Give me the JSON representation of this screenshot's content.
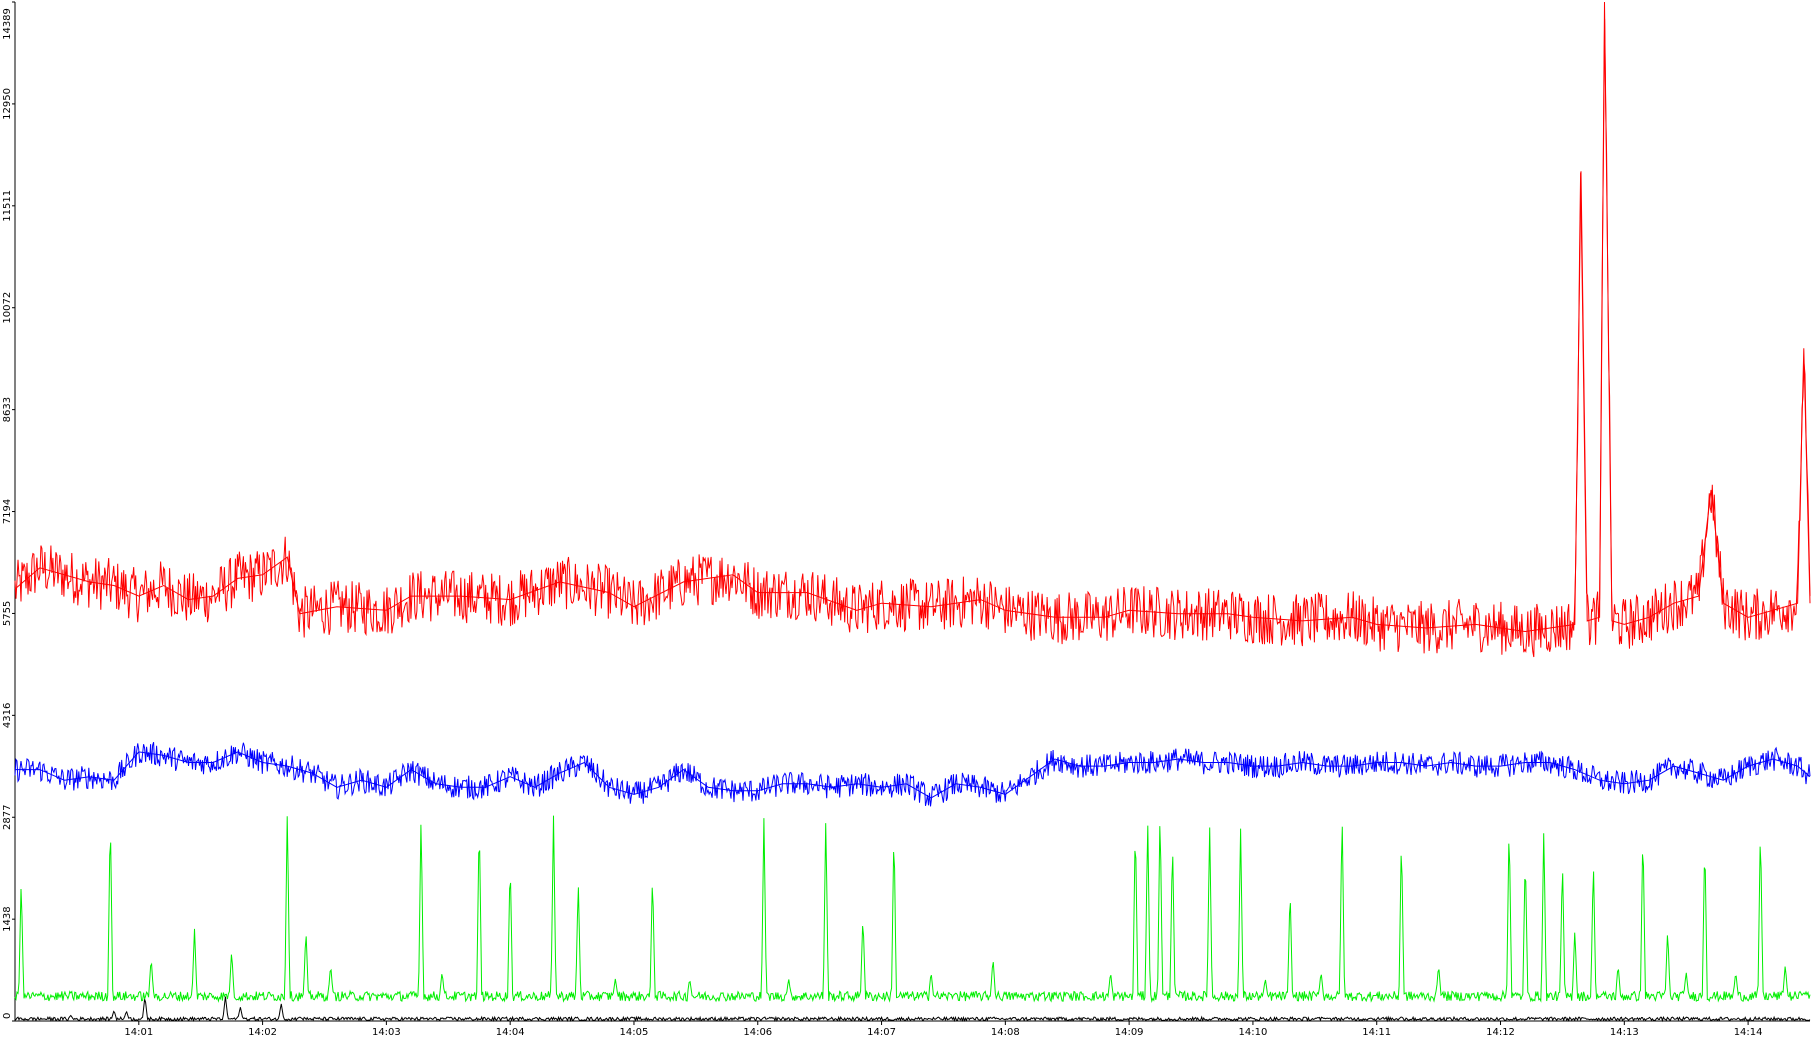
{
  "chart_data": {
    "type": "line",
    "title": "",
    "xlabel": "",
    "ylabel": "",
    "ylim": [
      0,
      14389
    ],
    "y_ticks": [
      "0",
      "1438",
      "2877",
      "4316",
      "5755",
      "7194",
      "8633",
      "10072",
      "11511",
      "12950",
      "14389"
    ],
    "x_range_minutes": [
      0.0,
      14.5
    ],
    "x_ticks": [
      {
        "label": "14:01",
        "t": 1
      },
      {
        "label": "14:02",
        "t": 2
      },
      {
        "label": "14:03",
        "t": 3
      },
      {
        "label": "14:04",
        "t": 4
      },
      {
        "label": "14:05",
        "t": 5
      },
      {
        "label": "14:06",
        "t": 6
      },
      {
        "label": "14:07",
        "t": 7
      },
      {
        "label": "14:08",
        "t": 8
      },
      {
        "label": "14:09",
        "t": 9
      },
      {
        "label": "14:10",
        "t": 10
      },
      {
        "label": "14:11",
        "t": 11
      },
      {
        "label": "14:12",
        "t": 12
      },
      {
        "label": "14:13",
        "t": 13
      },
      {
        "label": "14:14",
        "t": 14
      }
    ],
    "grid": false,
    "legend": "none",
    "series": [
      {
        "color": "#ff0000",
        "points": [
          [
            0.0,
            6100
          ],
          [
            0.2,
            6400
          ],
          [
            0.4,
            6300
          ],
          [
            0.6,
            6200
          ],
          [
            0.8,
            6150
          ],
          [
            1.0,
            6000
          ],
          [
            1.2,
            6150
          ],
          [
            1.4,
            5950
          ],
          [
            1.6,
            6000
          ],
          [
            1.8,
            6250
          ],
          [
            2.0,
            6300
          ],
          [
            2.2,
            6550
          ],
          [
            2.3,
            5750
          ],
          [
            2.6,
            5850
          ],
          [
            3.0,
            5800
          ],
          [
            3.2,
            6000
          ],
          [
            3.6,
            6000
          ],
          [
            4.0,
            5950
          ],
          [
            4.4,
            6200
          ],
          [
            4.8,
            6050
          ],
          [
            5.0,
            5850
          ],
          [
            5.4,
            6200
          ],
          [
            5.8,
            6300
          ],
          [
            6.0,
            6050
          ],
          [
            6.4,
            6050
          ],
          [
            6.8,
            5800
          ],
          [
            7.0,
            5900
          ],
          [
            7.4,
            5850
          ],
          [
            7.8,
            5950
          ],
          [
            8.0,
            5800
          ],
          [
            8.4,
            5700
          ],
          [
            8.8,
            5700
          ],
          [
            9.0,
            5800
          ],
          [
            9.4,
            5750
          ],
          [
            9.8,
            5750
          ],
          [
            10.0,
            5700
          ],
          [
            10.4,
            5650
          ],
          [
            10.8,
            5700
          ],
          [
            11.0,
            5600
          ],
          [
            11.4,
            5550
          ],
          [
            11.8,
            5600
          ],
          [
            12.0,
            5550
          ],
          [
            12.2,
            5500
          ],
          [
            12.4,
            5550
          ],
          [
            12.6,
            5600
          ],
          [
            12.65,
            12000
          ],
          [
            12.7,
            5650
          ],
          [
            12.8,
            5700
          ],
          [
            12.84,
            14389
          ],
          [
            12.9,
            5650
          ],
          [
            13.0,
            5600
          ],
          [
            13.2,
            5700
          ],
          [
            13.4,
            5900
          ],
          [
            13.6,
            6000
          ],
          [
            13.7,
            7500
          ],
          [
            13.8,
            5900
          ],
          [
            14.0,
            5700
          ],
          [
            14.2,
            5800
          ],
          [
            14.4,
            5900
          ],
          [
            14.45,
            9500
          ],
          [
            14.5,
            5900
          ]
        ]
      },
      {
        "color": "#0000ff",
        "points": [
          [
            0.0,
            3550
          ],
          [
            0.2,
            3550
          ],
          [
            0.4,
            3400
          ],
          [
            0.6,
            3450
          ],
          [
            0.8,
            3400
          ],
          [
            1.0,
            3800
          ],
          [
            1.2,
            3750
          ],
          [
            1.4,
            3650
          ],
          [
            1.6,
            3650
          ],
          [
            1.8,
            3800
          ],
          [
            2.0,
            3650
          ],
          [
            2.2,
            3600
          ],
          [
            2.4,
            3500
          ],
          [
            2.6,
            3300
          ],
          [
            2.8,
            3400
          ],
          [
            3.0,
            3300
          ],
          [
            3.2,
            3550
          ],
          [
            3.4,
            3350
          ],
          [
            3.6,
            3300
          ],
          [
            3.8,
            3300
          ],
          [
            4.0,
            3450
          ],
          [
            4.2,
            3300
          ],
          [
            4.4,
            3500
          ],
          [
            4.6,
            3650
          ],
          [
            4.8,
            3300
          ],
          [
            5.0,
            3200
          ],
          [
            5.2,
            3300
          ],
          [
            5.4,
            3550
          ],
          [
            5.6,
            3300
          ],
          [
            5.8,
            3250
          ],
          [
            6.0,
            3250
          ],
          [
            6.2,
            3350
          ],
          [
            6.4,
            3350
          ],
          [
            6.6,
            3300
          ],
          [
            6.8,
            3350
          ],
          [
            7.0,
            3300
          ],
          [
            7.2,
            3350
          ],
          [
            7.4,
            3150
          ],
          [
            7.6,
            3350
          ],
          [
            7.8,
            3300
          ],
          [
            8.0,
            3200
          ],
          [
            8.2,
            3450
          ],
          [
            8.4,
            3700
          ],
          [
            8.6,
            3600
          ],
          [
            8.8,
            3600
          ],
          [
            9.0,
            3650
          ],
          [
            9.2,
            3650
          ],
          [
            9.4,
            3700
          ],
          [
            9.6,
            3650
          ],
          [
            9.8,
            3650
          ],
          [
            10.0,
            3600
          ],
          [
            10.2,
            3600
          ],
          [
            10.4,
            3650
          ],
          [
            10.6,
            3600
          ],
          [
            10.8,
            3600
          ],
          [
            11.0,
            3650
          ],
          [
            11.2,
            3650
          ],
          [
            11.4,
            3600
          ],
          [
            11.6,
            3650
          ],
          [
            11.8,
            3600
          ],
          [
            12.0,
            3600
          ],
          [
            12.2,
            3650
          ],
          [
            12.4,
            3650
          ],
          [
            12.6,
            3550
          ],
          [
            12.8,
            3400
          ],
          [
            13.0,
            3350
          ],
          [
            13.2,
            3400
          ],
          [
            13.4,
            3600
          ],
          [
            13.6,
            3500
          ],
          [
            13.8,
            3400
          ],
          [
            14.0,
            3600
          ],
          [
            14.2,
            3700
          ],
          [
            14.4,
            3600
          ],
          [
            14.5,
            3450
          ]
        ]
      },
      {
        "color": "#00ee00",
        "baseline": 350,
        "peaks": [
          [
            0.05,
            2000
          ],
          [
            0.77,
            2950
          ],
          [
            1.1,
            900
          ],
          [
            1.45,
            1300
          ],
          [
            1.75,
            1000
          ],
          [
            2.2,
            3000
          ],
          [
            2.35,
            1300
          ],
          [
            2.55,
            800
          ],
          [
            3.28,
            2950
          ],
          [
            3.45,
            700
          ],
          [
            3.75,
            2900
          ],
          [
            4.0,
            2300
          ],
          [
            4.35,
            2900
          ],
          [
            4.55,
            2000
          ],
          [
            4.85,
            600
          ],
          [
            5.15,
            2100
          ],
          [
            5.45,
            600
          ],
          [
            6.05,
            2900
          ],
          [
            6.25,
            600
          ],
          [
            6.55,
            2900
          ],
          [
            6.85,
            1500
          ],
          [
            7.1,
            2750
          ],
          [
            7.4,
            700
          ],
          [
            7.6,
            400
          ],
          [
            7.9,
            900
          ],
          [
            8.3,
            400
          ],
          [
            8.5,
            400
          ],
          [
            8.85,
            700
          ],
          [
            9.05,
            2850
          ],
          [
            9.15,
            2900
          ],
          [
            9.25,
            3050
          ],
          [
            9.35,
            2600
          ],
          [
            9.65,
            2800
          ],
          [
            9.9,
            2750
          ],
          [
            10.1,
            600
          ],
          [
            10.3,
            1900
          ],
          [
            10.55,
            700
          ],
          [
            10.72,
            3000
          ],
          [
            11.2,
            2650
          ],
          [
            11.5,
            800
          ],
          [
            11.85,
            400
          ],
          [
            12.07,
            2850
          ],
          [
            12.2,
            2400
          ],
          [
            12.35,
            2750
          ],
          [
            12.5,
            2300
          ],
          [
            12.6,
            1300
          ],
          [
            12.75,
            2300
          ],
          [
            12.95,
            800
          ],
          [
            13.15,
            2750
          ],
          [
            13.35,
            1300
          ],
          [
            13.5,
            700
          ],
          [
            13.65,
            2600
          ],
          [
            13.9,
            700
          ],
          [
            14.1,
            2800
          ],
          [
            14.3,
            800
          ],
          [
            14.45,
            400
          ]
        ]
      },
      {
        "color": "#000000",
        "baseline": 30,
        "peaks": [
          [
            0.45,
            80
          ],
          [
            0.8,
            150
          ],
          [
            0.9,
            140
          ],
          [
            1.05,
            350
          ],
          [
            1.7,
            350
          ],
          [
            1.82,
            200
          ],
          [
            2.15,
            250
          ],
          [
            2.3,
            60
          ],
          [
            3.5,
            40
          ],
          [
            4.2,
            40
          ],
          [
            10.6,
            40
          ],
          [
            10.95,
            40
          ],
          [
            11.2,
            60
          ]
        ]
      }
    ]
  }
}
